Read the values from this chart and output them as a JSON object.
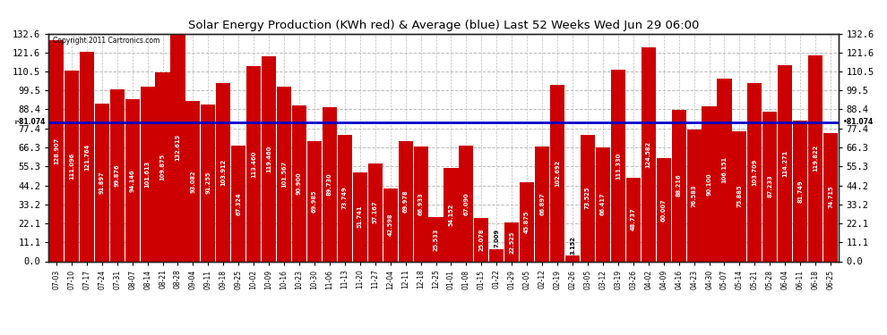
{
  "title": "Solar Energy Production (KWh red) & Average (blue) Last 52 Weeks Wed Jun 29 06:00",
  "copyright": "Copyright 2011 Cartronics.com",
  "average": 81.074,
  "bar_color": "#cc0000",
  "avg_line_color": "#0000cc",
  "background_color": "#ffffff",
  "grid_color": "#bbbbbb",
  "yticks": [
    0.0,
    11.1,
    22.1,
    33.2,
    44.2,
    55.3,
    66.3,
    77.4,
    88.4,
    99.5,
    110.5,
    121.6,
    132.6
  ],
  "ymax": 132.6,
  "labels": [
    "07-03",
    "07-10",
    "07-17",
    "07-24",
    "07-31",
    "08-07",
    "08-14",
    "08-21",
    "08-28",
    "09-04",
    "09-11",
    "09-18",
    "09-25",
    "10-02",
    "10-09",
    "10-16",
    "10-23",
    "10-30",
    "11-06",
    "11-13",
    "11-20",
    "11-27",
    "12-04",
    "12-11",
    "12-18",
    "12-25",
    "01-01",
    "01-08",
    "01-15",
    "01-22",
    "01-29",
    "02-05",
    "02-12",
    "02-19",
    "02-26",
    "03-05",
    "03-12",
    "03-19",
    "03-26",
    "04-02",
    "04-09",
    "04-16",
    "04-23",
    "04-30",
    "05-07",
    "05-14",
    "05-21",
    "05-28",
    "06-04",
    "06-11",
    "06-18",
    "06-25"
  ],
  "values": [
    128.907,
    111.096,
    121.764,
    91.897,
    99.876,
    94.146,
    101.613,
    109.875,
    132.615,
    93.082,
    91.255,
    103.912,
    67.324,
    113.46,
    119.46,
    101.567,
    90.9,
    69.985,
    89.73,
    73.749,
    51.741,
    57.167,
    42.598,
    69.978,
    66.933,
    25.533,
    54.152,
    67.09,
    25.078,
    7.009,
    22.525,
    45.875,
    66.897,
    102.692,
    3.152,
    73.525,
    66.417,
    111.33,
    48.737,
    124.582,
    60.007,
    88.216,
    76.583,
    90.1,
    106.151,
    75.885,
    103.709,
    87.233,
    114.271,
    81.749,
    119.822,
    74.715
  ]
}
